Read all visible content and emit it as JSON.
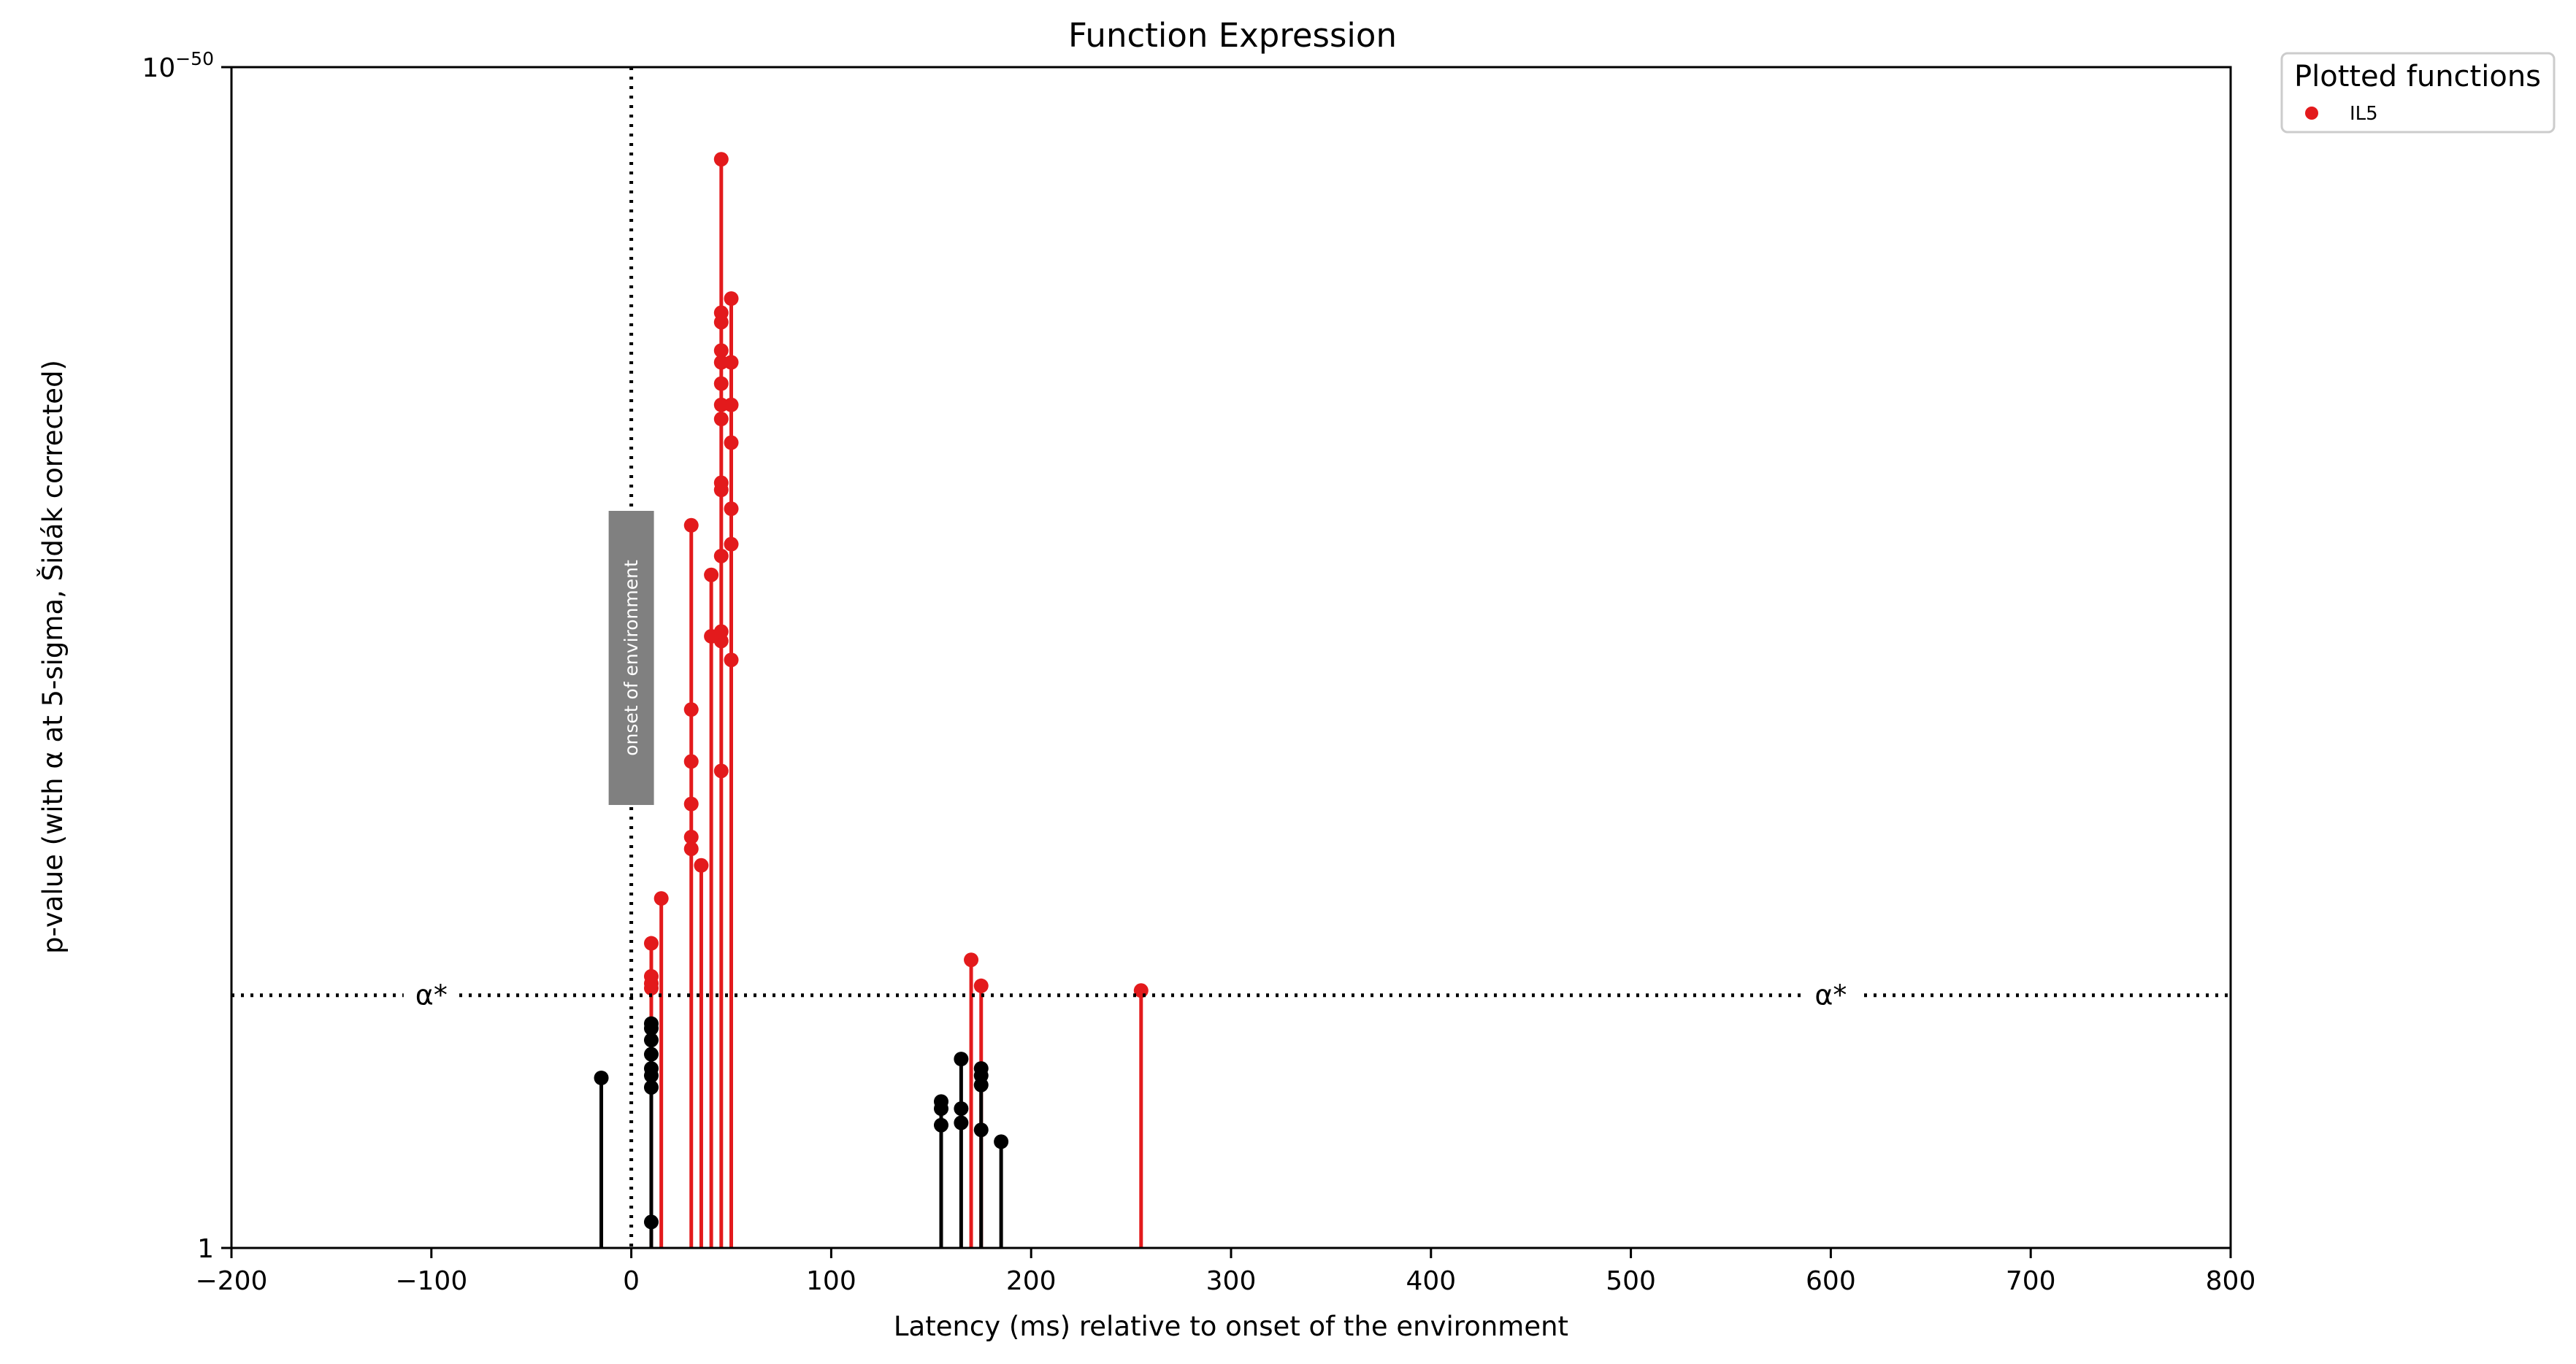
{
  "chart_data": {
    "type": "stem",
    "title": "Function Expression",
    "xlabel": "Latency (ms) relative to onset of the environment",
    "ylabel": "p-value (with α at 5-sigma, Šidák corrected)",
    "xlim": [
      -200,
      800
    ],
    "x_ticks": [
      -200,
      -100,
      0,
      100,
      200,
      300,
      400,
      500,
      600,
      700,
      800
    ],
    "x_tick_labels": [
      "−200",
      "−100",
      "0",
      "100",
      "200",
      "300",
      "400",
      "500",
      "600",
      "700",
      "800"
    ],
    "y_scale": "log (-log10 p)",
    "ylim_neglog10": [
      0,
      50
    ],
    "y_tick_labels": [
      {
        "value": 0,
        "base": "1",
        "exp": ""
      },
      {
        "value": 50,
        "base": "10",
        "exp": "−50"
      }
    ],
    "alpha_neglog10": 10.7,
    "alpha_label": "α*",
    "alpha_label_x": [
      -100,
      600
    ],
    "onset_x": 0,
    "onset_label": "onset of environment",
    "legend": {
      "title": "Plotted functions",
      "placement": "outside top-right",
      "items": [
        {
          "name": "IL5",
          "color": "#e31a1c"
        }
      ]
    },
    "colors": {
      "significant": "#e31a1c",
      "insignificant": "#000000"
    },
    "series": [
      {
        "name": "IL5",
        "points": [
          [
            -15,
            7.2
          ],
          [
            10,
            1.1
          ],
          [
            10,
            6.8
          ],
          [
            10,
            7.3
          ],
          [
            10,
            7.6
          ],
          [
            10,
            8.2
          ],
          [
            10,
            8.8
          ],
          [
            10,
            9.3
          ],
          [
            10,
            9.5
          ],
          [
            10,
            11.0
          ],
          [
            10,
            11.2
          ],
          [
            10,
            11.5
          ],
          [
            10,
            12.9
          ],
          [
            15,
            14.8
          ],
          [
            30,
            16.9
          ],
          [
            30,
            17.4
          ],
          [
            30,
            18.8
          ],
          [
            30,
            20.6
          ],
          [
            30,
            22.8
          ],
          [
            30,
            30.6
          ],
          [
            35,
            16.2
          ],
          [
            40,
            25.9
          ],
          [
            40,
            28.5
          ],
          [
            45,
            20.2
          ],
          [
            45,
            25.7
          ],
          [
            45,
            26.1
          ],
          [
            45,
            29.3
          ],
          [
            45,
            32.1
          ],
          [
            45,
            32.4
          ],
          [
            45,
            35.1
          ],
          [
            45,
            35.7
          ],
          [
            45,
            36.6
          ],
          [
            45,
            37.5
          ],
          [
            45,
            38.0
          ],
          [
            45,
            39.2
          ],
          [
            45,
            39.6
          ],
          [
            45,
            46.1
          ],
          [
            50,
            24.9
          ],
          [
            50,
            29.8
          ],
          [
            50,
            31.3
          ],
          [
            50,
            34.1
          ],
          [
            50,
            35.7
          ],
          [
            50,
            37.5
          ],
          [
            50,
            40.2
          ],
          [
            155,
            5.2
          ],
          [
            155,
            5.9
          ],
          [
            155,
            6.2
          ],
          [
            165,
            5.3
          ],
          [
            165,
            5.9
          ],
          [
            165,
            8.0
          ],
          [
            170,
            12.2
          ],
          [
            175,
            5.0
          ],
          [
            175,
            6.9
          ],
          [
            175,
            7.3
          ],
          [
            175,
            7.6
          ],
          [
            175,
            11.1
          ],
          [
            185,
            4.5
          ],
          [
            255,
            10.9
          ]
        ]
      }
    ]
  }
}
